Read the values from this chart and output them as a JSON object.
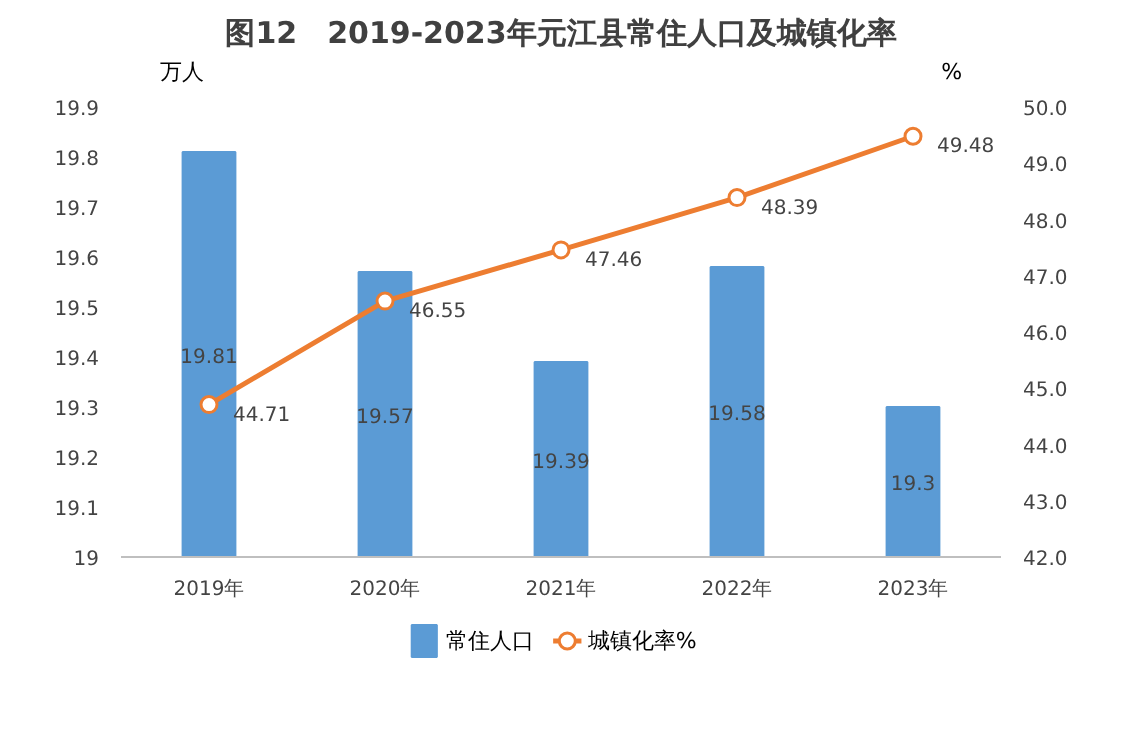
{
  "chart_data": {
    "type": "bar",
    "title": "图12　2019-2023年元江县常住人口及城镇化率",
    "ylabel": "万人",
    "y2label": "%",
    "categories": [
      "2019年",
      "2020年",
      "2021年",
      "2022年",
      "2023年"
    ],
    "series": [
      {
        "name": "常住人口",
        "color": "#5b9bd5",
        "values": [
          19.81,
          19.57,
          19.39,
          19.58,
          19.3
        ]
      },
      {
        "name": "城镇化率%",
        "type": "line",
        "axis": "y2",
        "color": "#ed7d31",
        "marker": "circle",
        "values": [
          44.71,
          46.55,
          47.46,
          48.39,
          49.48
        ]
      }
    ],
    "ylim": [
      19,
      19.9
    ],
    "yticks": [
      19,
      19.1,
      19.2,
      19.3,
      19.4,
      19.5,
      19.6,
      19.7,
      19.8,
      19.9
    ],
    "y2lim": [
      42,
      50
    ],
    "y2ticks": [
      {
        "value": 42,
        "label": "42.0"
      },
      {
        "value": 43,
        "label": "43.0"
      },
      {
        "value": 44,
        "label": "44.0"
      },
      {
        "value": 45,
        "label": "45.0"
      },
      {
        "value": 46,
        "label": "46.0"
      },
      {
        "value": 47,
        "label": "47.0"
      },
      {
        "value": 48,
        "label": "48.0"
      },
      {
        "value": 49,
        "label": "49.0"
      },
      {
        "value": 50,
        "label": "50.0"
      }
    ],
    "data_labels": true,
    "grid": false,
    "legend": "bottom"
  }
}
